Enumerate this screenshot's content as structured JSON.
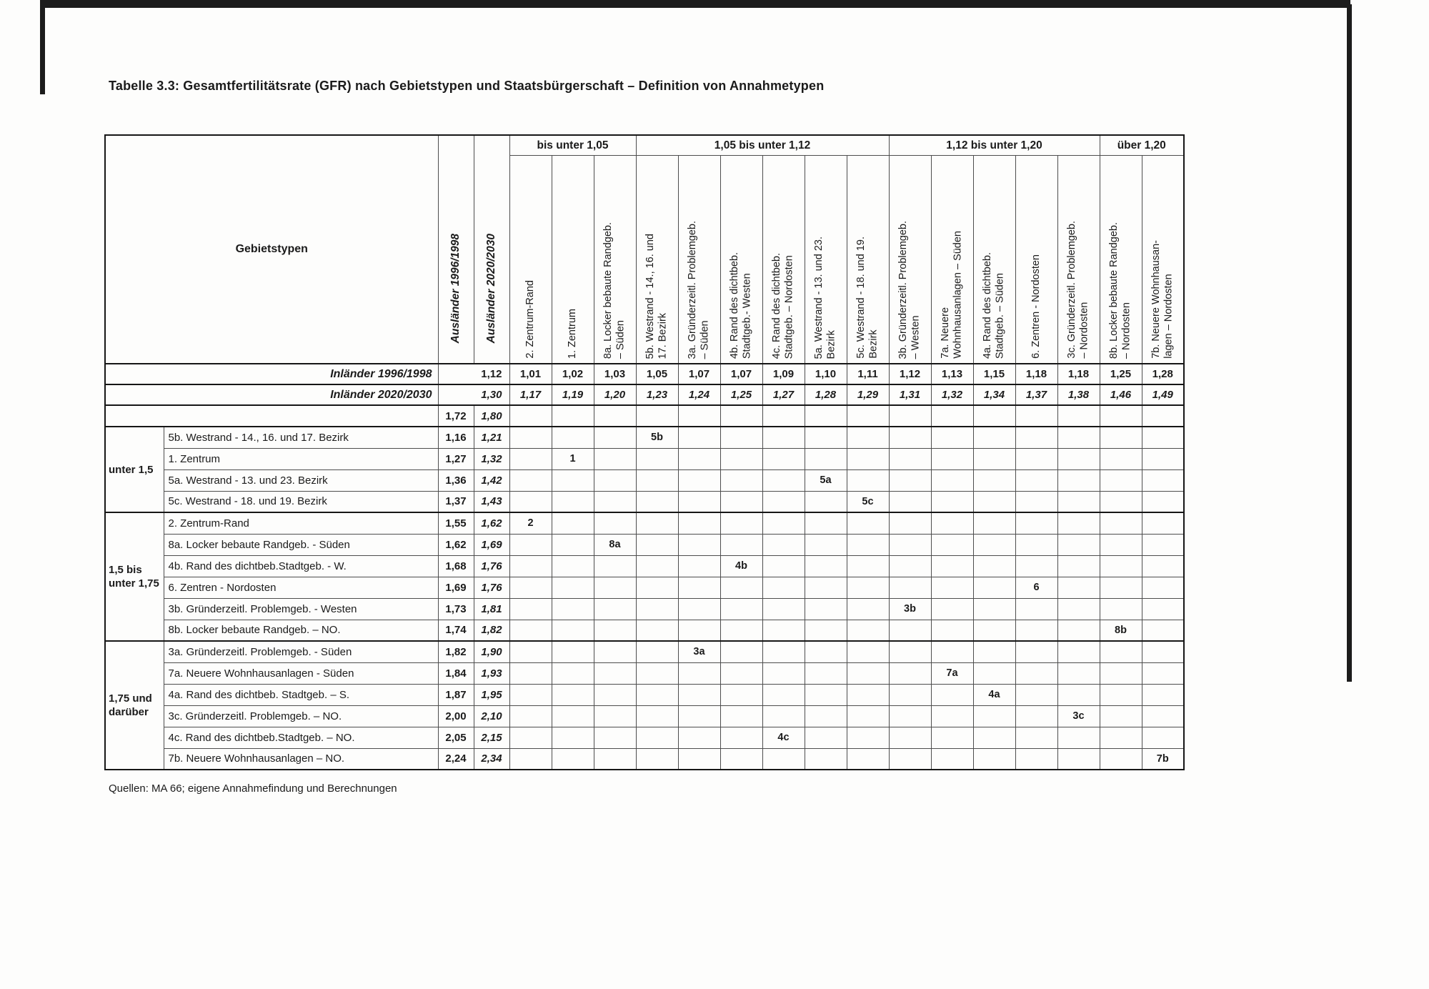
{
  "page": {
    "title": "Tabelle 3.3: Gesamtfertilitätsrate (GFR) nach Gebietstypen und Staatsbürgerschaft – Definition von Annahmetypen",
    "source": "Quellen: MA 66; eigene Annahmefindung und Berechnungen"
  },
  "table": {
    "corner_label": "Gebietstypen",
    "row_header_cols": [
      {
        "label": "Ausländer 1996/1998"
      },
      {
        "label": "Ausländer 2020/2030"
      }
    ],
    "bands": [
      {
        "label": "bis unter 1,05",
        "span": 3
      },
      {
        "label": "1,05 bis unter 1,12",
        "span": 6
      },
      {
        "label": "1,12 bis unter 1,20",
        "span": 5
      },
      {
        "label": "über 1,20",
        "span": 2
      }
    ],
    "columns": [
      {
        "code": "2",
        "label": "2. Zentrum-Rand"
      },
      {
        "code": "1",
        "label": "1. Zentrum"
      },
      {
        "code": "8a",
        "label": "8a. Locker bebaute Randgeb.\n– Süden"
      },
      {
        "code": "5b",
        "label": "5b. Westrand - 14., 16. und\n17. Bezirk"
      },
      {
        "code": "3a",
        "label": "3a. Gründerzeitl. Problemgeb.\n– Süden"
      },
      {
        "code": "4b",
        "label": "4b. Rand des dichtbeb.\nStadtgeb.- Westen"
      },
      {
        "code": "4c",
        "label": "4c. Rand des dichtbeb.\nStadtgeb. – Nordosten"
      },
      {
        "code": "5a",
        "label": "5a. Westrand - 13. und 23.\nBezirk"
      },
      {
        "code": "5c",
        "label": "5c. Westrand - 18. und 19.\nBezirk"
      },
      {
        "code": "3b",
        "label": "3b. Gründerzeitl. Problemgeb.\n– Westen"
      },
      {
        "code": "7a",
        "label": "7a. Neuere\nWohnhausanlagen – Süden"
      },
      {
        "code": "4a",
        "label": "4a. Rand des dichtbeb.\nStadtgeb. – Süden"
      },
      {
        "code": "6",
        "label": "6. Zentren - Nordosten"
      },
      {
        "code": "3c",
        "label": "3c. Gründerzeitl. Problemgeb.\n– Nordosten"
      },
      {
        "code": "8b",
        "label": "8b. Locker bebaute Randgeb.\n– Nordosten"
      },
      {
        "code": "7b",
        "label": "7b. Neuere Wohnhausan-\nlagen – Nordosten"
      }
    ],
    "inlaender_rows": [
      {
        "label": "Inländer 1996/1998",
        "total": "1,12",
        "italic": false,
        "values": [
          "1,01",
          "1,02",
          "1,03",
          "1,05",
          "1,07",
          "1,07",
          "1,09",
          "1,10",
          "1,11",
          "1,12",
          "1,13",
          "1,15",
          "1,18",
          "1,18",
          "1,25",
          "1,28"
        ]
      },
      {
        "label": "Inländer 2020/2030",
        "total": "1,30",
        "italic": true,
        "values": [
          "1,17",
          "1,19",
          "1,20",
          "1,23",
          "1,24",
          "1,25",
          "1,27",
          "1,28",
          "1,29",
          "1,31",
          "1,32",
          "1,34",
          "1,37",
          "1,38",
          "1,46",
          "1,49"
        ]
      }
    ],
    "totals_row": {
      "v1996": "1,72",
      "v2030": "1,80"
    },
    "groups": [
      {
        "label": "unter 1,5",
        "rows": [
          {
            "code": "5b",
            "name": "5b. Westrand - 14., 16. und 17. Bezirk",
            "v1996": "1,16",
            "v2030": "1,21"
          },
          {
            "code": "1",
            "name": "1. Zentrum",
            "v1996": "1,27",
            "v2030": "1,32"
          },
          {
            "code": "5a",
            "name": "5a. Westrand - 13. und 23. Bezirk",
            "v1996": "1,36",
            "v2030": "1,42"
          },
          {
            "code": "5c",
            "name": "5c. Westrand - 18. und 19. Bezirk",
            "v1996": "1,37",
            "v2030": "1,43"
          }
        ]
      },
      {
        "label": "1,5 bis\nunter 1,75",
        "rows": [
          {
            "code": "2",
            "name": "2. Zentrum-Rand",
            "v1996": "1,55",
            "v2030": "1,62"
          },
          {
            "code": "8a",
            "name": "8a. Locker bebaute Randgeb. - Süden",
            "v1996": "1,62",
            "v2030": "1,69"
          },
          {
            "code": "4b",
            "name": "4b. Rand des dichtbeb.Stadtgeb. - W.",
            "v1996": "1,68",
            "v2030": "1,76"
          },
          {
            "code": "6",
            "name": "6. Zentren - Nordosten",
            "v1996": "1,69",
            "v2030": "1,76"
          },
          {
            "code": "3b",
            "name": "3b. Gründerzeitl. Problemgeb. - Westen",
            "v1996": "1,73",
            "v2030": "1,81"
          },
          {
            "code": "8b",
            "name": "8b. Locker bebaute Randgeb. – NO.",
            "v1996": "1,74",
            "v2030": "1,82"
          }
        ]
      },
      {
        "label": "1,75 und\ndarüber",
        "rows": [
          {
            "code": "3a",
            "name": "3a. Gründerzeitl. Problemgeb. - Süden",
            "v1996": "1,82",
            "v2030": "1,90"
          },
          {
            "code": "7a",
            "name": "7a. Neuere Wohnhausanlagen - Süden",
            "v1996": "1,84",
            "v2030": "1,93"
          },
          {
            "code": "4a",
            "name": "4a. Rand des dichtbeb. Stadtgeb. – S.",
            "v1996": "1,87",
            "v2030": "1,95"
          },
          {
            "code": "3c",
            "name": "3c. Gründerzeitl. Problemgeb. – NO.",
            "v1996": "2,00",
            "v2030": "2,10"
          },
          {
            "code": "4c",
            "name": "4c. Rand des dichtbeb.Stadtgeb. – NO.",
            "v1996": "2,05",
            "v2030": "2,15"
          },
          {
            "code": "7b",
            "name": "7b. Neuere Wohnhausanlagen – NO.",
            "v1996": "2,24",
            "v2030": "2,34"
          }
        ]
      }
    ]
  }
}
